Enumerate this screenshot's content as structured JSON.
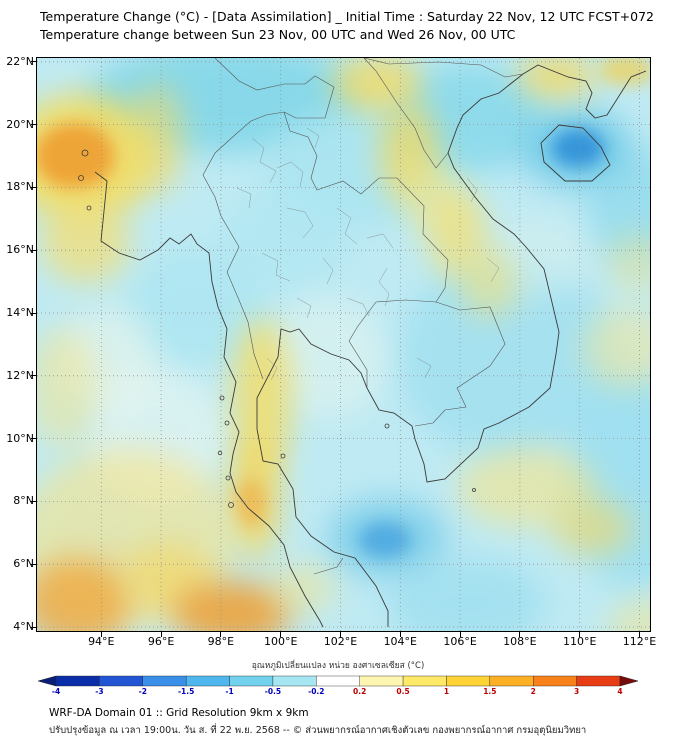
{
  "header": {
    "title_line1": "Temperature Change (°C) - [Data Assimilation] _ Initial Time : Saturday 22 Nov, 12 UTC FCST+072",
    "title_line2": "Temperature change between Sun 23 Nov, 00 UTC and Wed 26 Nov, 00 UTC"
  },
  "map": {
    "lat_labels": [
      "22°N",
      "20°N",
      "18°N",
      "16°N",
      "14°N",
      "12°N",
      "10°N",
      "8°N",
      "6°N",
      "4°N"
    ],
    "lon_labels": [
      "94°E",
      "96°E",
      "98°E",
      "100°E",
      "102°E",
      "104°E",
      "106°E",
      "108°E",
      "110°E",
      "112°E"
    ],
    "base_color": "#bfeaf3",
    "grid_color": "#8f8f8f",
    "coast_color": "#3a3a3a",
    "border_color": "#555555",
    "field_blobs": [
      [
        190,
        40,
        140,
        55,
        "#7fd6e8",
        0.85,
        "s"
      ],
      [
        320,
        110,
        90,
        60,
        "#a8e4f0",
        0.8,
        "s"
      ],
      [
        430,
        60,
        80,
        55,
        "#84d8ea",
        0.8,
        "s"
      ],
      [
        250,
        180,
        65,
        50,
        "#ace6f2",
        0.6,
        "s"
      ],
      [
        160,
        250,
        70,
        60,
        "#a9e5f1",
        0.7,
        "s"
      ],
      [
        470,
        300,
        110,
        100,
        "#9edff0",
        0.75,
        "s"
      ],
      [
        600,
        150,
        50,
        60,
        "#8cd9ec",
        0.7,
        "s"
      ],
      [
        598,
        420,
        70,
        110,
        "#97ddef",
        0.75,
        "s"
      ],
      [
        430,
        545,
        80,
        45,
        "#9adeef",
        0.7,
        "s"
      ],
      [
        539,
        90,
        55,
        40,
        "#6cc8e6",
        0.85,
        "s"
      ],
      [
        541,
        90,
        26,
        19,
        "#2f8fd8",
        0.9,
        "m"
      ],
      [
        350,
        480,
        60,
        40,
        "#7ccde9",
        0.85,
        "s"
      ],
      [
        348,
        482,
        26,
        18,
        "#4da8e0",
        0.9,
        "m"
      ],
      [
        120,
        380,
        70,
        70,
        "#eef8f0",
        0.55,
        "s"
      ],
      [
        290,
        300,
        60,
        60,
        "#e8f6ee",
        0.5,
        "s"
      ],
      [
        500,
        200,
        50,
        40,
        "#ddf2ec",
        0.45,
        "s"
      ],
      [
        70,
        300,
        50,
        50,
        "#f2f8e8",
        0.5,
        "s"
      ],
      [
        45,
        100,
        75,
        65,
        "#f6dc5a",
        0.85,
        "s"
      ],
      [
        38,
        98,
        40,
        33,
        "#ef9f33",
        0.9,
        "m"
      ],
      [
        120,
        80,
        28,
        55,
        "#f4da60",
        0.55,
        "s"
      ],
      [
        48,
        185,
        45,
        40,
        "#f6de6e",
        0.7,
        "s"
      ],
      [
        25,
        330,
        35,
        60,
        "#f6e487",
        0.5,
        "s"
      ],
      [
        340,
        25,
        45,
        28,
        "#f4da60",
        0.8,
        "s"
      ],
      [
        372,
        95,
        30,
        50,
        "#f4da60",
        0.75,
        "s"
      ],
      [
        395,
        140,
        30,
        35,
        "#f6e887",
        0.5,
        "s"
      ],
      [
        420,
        175,
        30,
        45,
        "#f6e070",
        0.7,
        "s"
      ],
      [
        452,
        225,
        28,
        35,
        "#f6e070",
        0.55,
        "s"
      ],
      [
        520,
        18,
        40,
        22,
        "#f4d85e",
        0.8,
        "s"
      ],
      [
        590,
        12,
        28,
        16,
        "#f2cf4e",
        0.7,
        "m"
      ],
      [
        600,
        205,
        30,
        30,
        "#f6e487",
        0.45,
        "s"
      ],
      [
        225,
        340,
        30,
        80,
        "#f5dd62",
        0.8,
        "s"
      ],
      [
        218,
        440,
        26,
        60,
        "#f5d75a",
        0.8,
        "s"
      ],
      [
        213,
        445,
        16,
        24,
        "#f0a83c",
        0.6,
        "m"
      ],
      [
        90,
        480,
        110,
        90,
        "#f7e387",
        0.6,
        "s"
      ],
      [
        40,
        545,
        55,
        45,
        "#f0a83c",
        0.8,
        "s"
      ],
      [
        130,
        520,
        45,
        35,
        "#f5d55e",
        0.6,
        "s"
      ],
      [
        195,
        555,
        60,
        32,
        "#ef9f33",
        0.85,
        "s"
      ],
      [
        265,
        530,
        35,
        25,
        "#f6e487",
        0.5,
        "s"
      ],
      [
        490,
        430,
        70,
        40,
        "#f6e487",
        0.6,
        "s"
      ],
      [
        555,
        470,
        40,
        28,
        "#f4d964",
        0.6,
        "s"
      ],
      [
        590,
        290,
        45,
        40,
        "#f6e68f",
        0.5,
        "s"
      ],
      [
        615,
        570,
        45,
        30,
        "#f6e487",
        0.5,
        "s"
      ]
    ]
  },
  "colorbar": {
    "title": "อุณหภูมิเปลี่ยนแปลง หน่วย องศาเซลเซียส (°C)",
    "ticks": [
      "-4",
      "-3",
      "-2",
      "-1.5",
      "-1",
      "-0.5",
      "-0.2",
      "0.2",
      "0.5",
      "1",
      "1.5",
      "2",
      "3",
      "4"
    ],
    "bin_colors": [
      "#0a2ea8",
      "#2255d4",
      "#3a8fe8",
      "#4fb6ee",
      "#72d2ee",
      "#a5e6f2",
      "#ffffff",
      "#fdf5b0",
      "#fde868",
      "#fdd336",
      "#fdb024",
      "#f8811c",
      "#e83c14"
    ],
    "arrow_left": "#0b1e7a",
    "arrow_right": "#7a0b0b",
    "tick_neg_color": "#0000bb",
    "tick_pos_color": "#bb0000"
  },
  "footer": {
    "line1": "WRF-DA Domain 01 :: Grid Resolution 9km x 9km",
    "line2": "ปรับปรุงข้อมูล ณ เวลา 19:00น. วัน ส. ที่ 22 พ.ย. 2568 -- © ส่วนพยากรณ์อากาศเชิงตัวเลข กองพยากรณ์อากาศ กรมอุตุนิยมวิทยา"
  }
}
